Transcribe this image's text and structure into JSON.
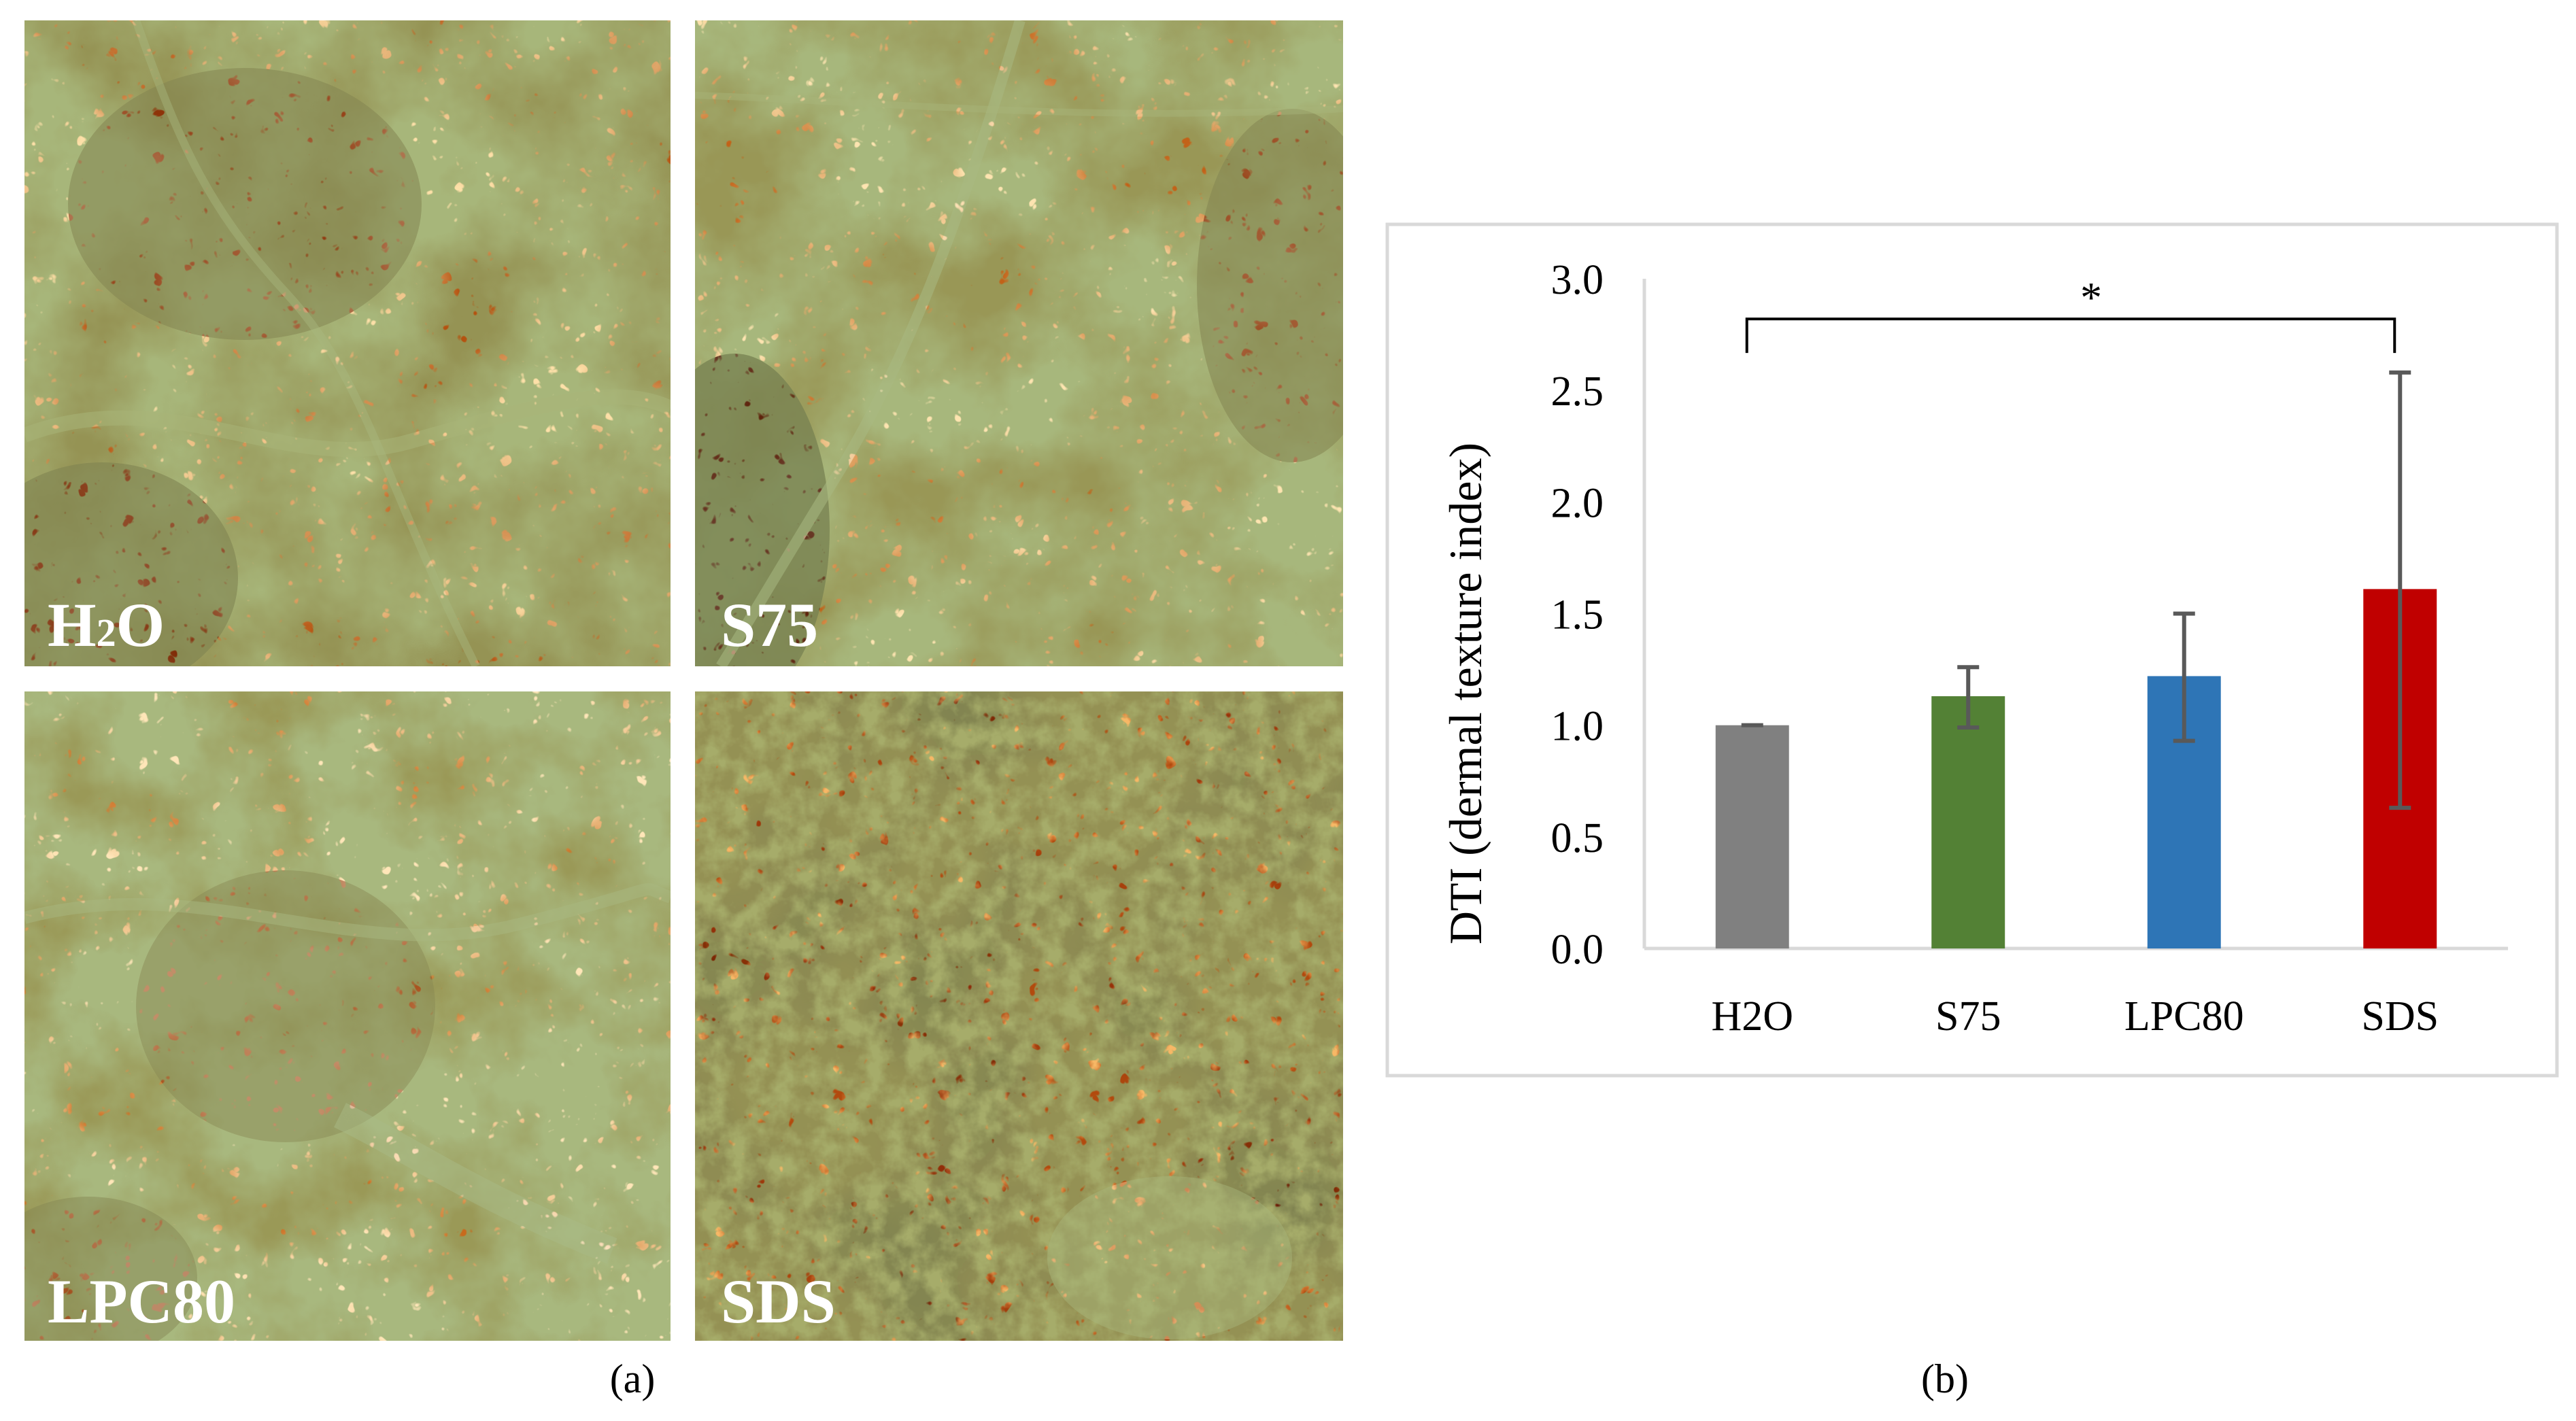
{
  "figure": {
    "panel_a_label": "(a)",
    "panel_b_label": "(b)",
    "images": [
      {
        "label_main": "H",
        "label_sub": "2",
        "label_tail": "O"
      },
      {
        "label_main": "S75",
        "label_sub": "",
        "label_tail": ""
      },
      {
        "label_main": "LPC80",
        "label_sub": "",
        "label_tail": ""
      },
      {
        "label_main": "SDS",
        "label_sub": "",
        "label_tail": ""
      }
    ]
  },
  "chart_data": {
    "type": "bar",
    "categories": [
      "H2O",
      "S75",
      "LPC80",
      "SDS"
    ],
    "values": [
      1.0,
      1.13,
      1.22,
      1.61
    ],
    "error_low": [
      0.0,
      0.14,
      0.29,
      0.98
    ],
    "error_high": [
      0.0,
      0.13,
      0.28,
      0.97
    ],
    "bar_colors": [
      "#808080",
      "#538135",
      "#2e75b6",
      "#c00000"
    ],
    "error_color": "#595959",
    "ylabel": "DTI (dermal texture index)",
    "ylim": [
      0,
      3.0
    ],
    "yticks": [
      "0.0",
      "0.5",
      "1.0",
      "1.5",
      "2.0",
      "2.5",
      "3.0"
    ],
    "grid": false,
    "significance": {
      "from": "H2O",
      "to": "SDS",
      "level": 2.82,
      "label": "*"
    }
  }
}
